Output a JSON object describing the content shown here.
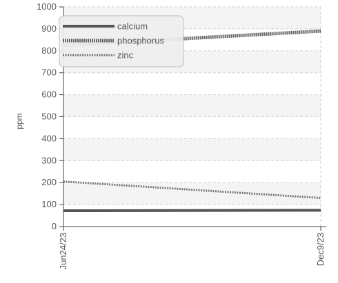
{
  "chart_data": {
    "type": "line",
    "title": "",
    "xlabel": "",
    "ylabel": "ppm",
    "ylim": [
      0,
      1000
    ],
    "yticks": [
      "0",
      "100",
      "200",
      "300",
      "400",
      "500",
      "600",
      "700",
      "800",
      "900",
      "1000"
    ],
    "xticks": [
      "Jun24/23",
      "Dec9/23"
    ],
    "x": [
      "2023-06-24",
      "2023-12-09"
    ],
    "grid": true,
    "legend_position": "top-left",
    "series": [
      {
        "name": "calcium",
        "values": [
          72,
          74
        ],
        "color": "#555555",
        "style": "solid"
      },
      {
        "name": "phosphorus",
        "values": [
          825,
          890
        ],
        "color": "#666666",
        "style": "dotted"
      },
      {
        "name": "zinc",
        "values": [
          205,
          130
        ],
        "color": "#777777",
        "style": "dashed"
      }
    ]
  }
}
